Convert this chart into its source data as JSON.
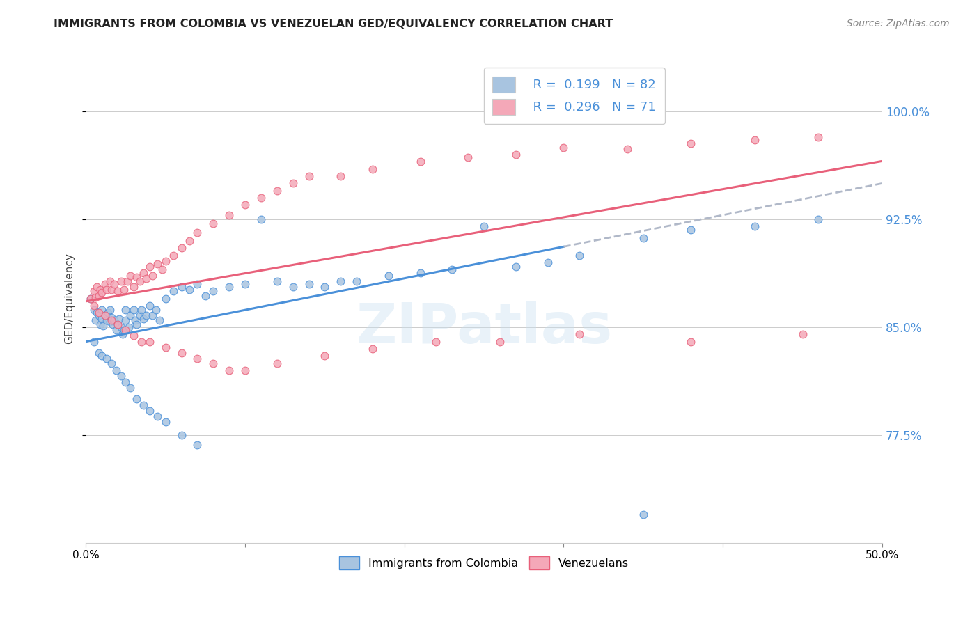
{
  "title": "IMMIGRANTS FROM COLOMBIA VS VENEZUELAN GED/EQUIVALENCY CORRELATION CHART",
  "source": "Source: ZipAtlas.com",
  "ylabel": "GED/Equivalency",
  "ytick_labels": [
    "100.0%",
    "92.5%",
    "85.0%",
    "77.5%"
  ],
  "ytick_values": [
    1.0,
    0.925,
    0.85,
    0.775
  ],
  "xlim": [
    0.0,
    0.5
  ],
  "ylim": [
    0.7,
    1.04
  ],
  "color_colombia": "#a8c4e0",
  "color_venezuela": "#f4a8b8",
  "trendline_colombia": "#4a90d9",
  "trendline_venezuela": "#e8607a",
  "trendline_dashed": "#b0b8c8",
  "colombia_intercept": 0.84,
  "colombia_slope": 0.22,
  "venezuela_intercept": 0.868,
  "venezuela_slope": 0.195,
  "colombia_x": [
    0.003,
    0.005,
    0.006,
    0.007,
    0.008,
    0.009,
    0.01,
    0.01,
    0.011,
    0.012,
    0.013,
    0.014,
    0.015,
    0.015,
    0.016,
    0.017,
    0.018,
    0.019,
    0.02,
    0.021,
    0.022,
    0.023,
    0.024,
    0.025,
    0.025,
    0.027,
    0.028,
    0.03,
    0.031,
    0.032,
    0.034,
    0.035,
    0.036,
    0.038,
    0.04,
    0.042,
    0.044,
    0.046,
    0.05,
    0.055,
    0.06,
    0.065,
    0.07,
    0.075,
    0.08,
    0.09,
    0.1,
    0.11,
    0.12,
    0.13,
    0.14,
    0.15,
    0.16,
    0.17,
    0.19,
    0.21,
    0.23,
    0.25,
    0.27,
    0.29,
    0.31,
    0.35,
    0.38,
    0.42,
    0.46,
    0.005,
    0.008,
    0.01,
    0.013,
    0.016,
    0.019,
    0.022,
    0.025,
    0.028,
    0.032,
    0.036,
    0.04,
    0.045,
    0.05,
    0.06,
    0.07,
    0.35
  ],
  "colombia_y": [
    0.87,
    0.862,
    0.855,
    0.86,
    0.858,
    0.852,
    0.856,
    0.862,
    0.851,
    0.858,
    0.855,
    0.86,
    0.854,
    0.862,
    0.857,
    0.852,
    0.855,
    0.848,
    0.852,
    0.856,
    0.85,
    0.845,
    0.848,
    0.855,
    0.862,
    0.85,
    0.858,
    0.862,
    0.855,
    0.852,
    0.858,
    0.862,
    0.856,
    0.858,
    0.865,
    0.858,
    0.862,
    0.855,
    0.87,
    0.875,
    0.878,
    0.876,
    0.88,
    0.872,
    0.875,
    0.878,
    0.88,
    0.925,
    0.882,
    0.878,
    0.88,
    0.878,
    0.882,
    0.882,
    0.886,
    0.888,
    0.89,
    0.92,
    0.892,
    0.895,
    0.9,
    0.912,
    0.918,
    0.92,
    0.925,
    0.84,
    0.832,
    0.83,
    0.828,
    0.825,
    0.82,
    0.816,
    0.812,
    0.808,
    0.8,
    0.796,
    0.792,
    0.788,
    0.784,
    0.775,
    0.768,
    0.72
  ],
  "venezuela_x": [
    0.003,
    0.005,
    0.006,
    0.007,
    0.008,
    0.009,
    0.01,
    0.012,
    0.013,
    0.015,
    0.016,
    0.018,
    0.02,
    0.022,
    0.024,
    0.026,
    0.028,
    0.03,
    0.032,
    0.034,
    0.036,
    0.038,
    0.04,
    0.042,
    0.045,
    0.048,
    0.05,
    0.055,
    0.06,
    0.065,
    0.07,
    0.08,
    0.09,
    0.1,
    0.11,
    0.12,
    0.13,
    0.14,
    0.16,
    0.18,
    0.21,
    0.24,
    0.27,
    0.3,
    0.34,
    0.38,
    0.42,
    0.46,
    0.005,
    0.008,
    0.012,
    0.016,
    0.02,
    0.025,
    0.03,
    0.035,
    0.04,
    0.05,
    0.06,
    0.07,
    0.08,
    0.09,
    0.1,
    0.12,
    0.15,
    0.18,
    0.22,
    0.26,
    0.31,
    0.38,
    0.45
  ],
  "venezuela_y": [
    0.87,
    0.875,
    0.871,
    0.878,
    0.872,
    0.876,
    0.874,
    0.88,
    0.876,
    0.882,
    0.876,
    0.88,
    0.875,
    0.882,
    0.876,
    0.882,
    0.886,
    0.878,
    0.885,
    0.882,
    0.888,
    0.884,
    0.892,
    0.886,
    0.894,
    0.89,
    0.896,
    0.9,
    0.905,
    0.91,
    0.916,
    0.922,
    0.928,
    0.935,
    0.94,
    0.945,
    0.95,
    0.955,
    0.955,
    0.96,
    0.965,
    0.968,
    0.97,
    0.975,
    0.974,
    0.978,
    0.98,
    0.982,
    0.865,
    0.86,
    0.858,
    0.855,
    0.852,
    0.848,
    0.844,
    0.84,
    0.84,
    0.836,
    0.832,
    0.828,
    0.825,
    0.82,
    0.82,
    0.825,
    0.83,
    0.835,
    0.84,
    0.84,
    0.845,
    0.84,
    0.845
  ]
}
